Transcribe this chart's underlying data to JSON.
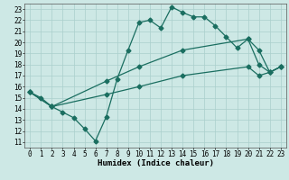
{
  "xlabel": "Humidex (Indice chaleur)",
  "bg_color": "#cde8e5",
  "grid_color": "#aacfcc",
  "line_color": "#1a6e60",
  "xlim": [
    -0.5,
    23.5
  ],
  "ylim": [
    10.5,
    23.5
  ],
  "xticks": [
    0,
    1,
    2,
    3,
    4,
    5,
    6,
    7,
    8,
    9,
    10,
    11,
    12,
    13,
    14,
    15,
    16,
    17,
    18,
    19,
    20,
    21,
    22,
    23
  ],
  "yticks": [
    11,
    12,
    13,
    14,
    15,
    16,
    17,
    18,
    19,
    20,
    21,
    22,
    23
  ],
  "line1_x": [
    0,
    1,
    2,
    3,
    4,
    5,
    6,
    7,
    8,
    9,
    10,
    11,
    12,
    13,
    14,
    15,
    16,
    17,
    18,
    19,
    20,
    21,
    22,
    23
  ],
  "line1_y": [
    15.5,
    15.0,
    14.2,
    13.7,
    13.2,
    12.2,
    11.1,
    13.3,
    16.7,
    19.3,
    21.8,
    22.0,
    21.3,
    23.2,
    22.7,
    22.3,
    22.3,
    21.5,
    20.5,
    19.5,
    20.3,
    18.0,
    17.3,
    17.8
  ],
  "line2_x": [
    0,
    2,
    7,
    10,
    14,
    20,
    21,
    22,
    23
  ],
  "line2_y": [
    15.5,
    14.2,
    16.5,
    17.8,
    19.3,
    20.3,
    19.3,
    17.3,
    17.8
  ],
  "line3_x": [
    0,
    2,
    7,
    10,
    14,
    20,
    21,
    22,
    23
  ],
  "line3_y": [
    15.5,
    14.2,
    15.3,
    16.0,
    17.0,
    17.8,
    17.0,
    17.3,
    17.8
  ],
  "markersize": 2.5,
  "linewidth": 0.9,
  "tick_fontsize": 5.5,
  "xlabel_fontsize": 6.5
}
